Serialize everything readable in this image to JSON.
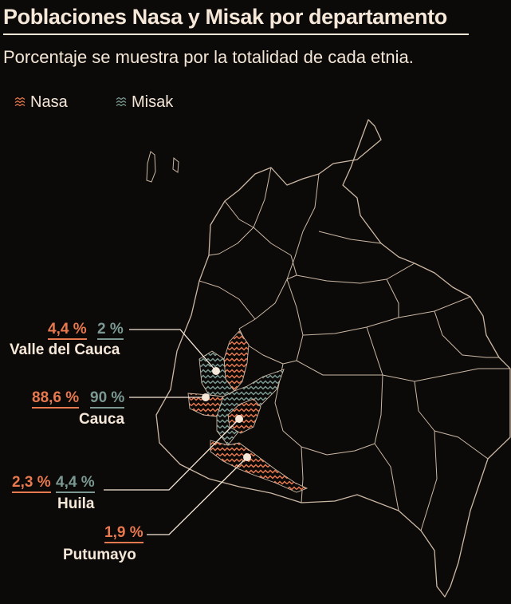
{
  "header": {
    "title": "Poblaciones Nasa y Misak por departamento",
    "subtitle": "Porcentaje se muestra por la totalidad de cada etnia."
  },
  "legend": [
    {
      "label": "Nasa",
      "color": "#e8784e"
    },
    {
      "label": "Misak",
      "color": "#7b9992"
    }
  ],
  "colors": {
    "background": "#0c0a09",
    "text": "#f6e8d8",
    "border": "#cbb8a4",
    "nasa": "#e8784e",
    "misak": "#7b9992"
  },
  "departments": [
    {
      "name": "Valle del Cauca",
      "nasa": "4,4 %",
      "misak": "2 %"
    },
    {
      "name": "Cauca",
      "nasa": "88,6 %",
      "misak": "90 %"
    },
    {
      "name": "Huila",
      "nasa": "2,3 %",
      "misak": "4,4 %"
    },
    {
      "name": "Putumayo",
      "nasa": "1,9 %",
      "misak": ""
    }
  ]
}
